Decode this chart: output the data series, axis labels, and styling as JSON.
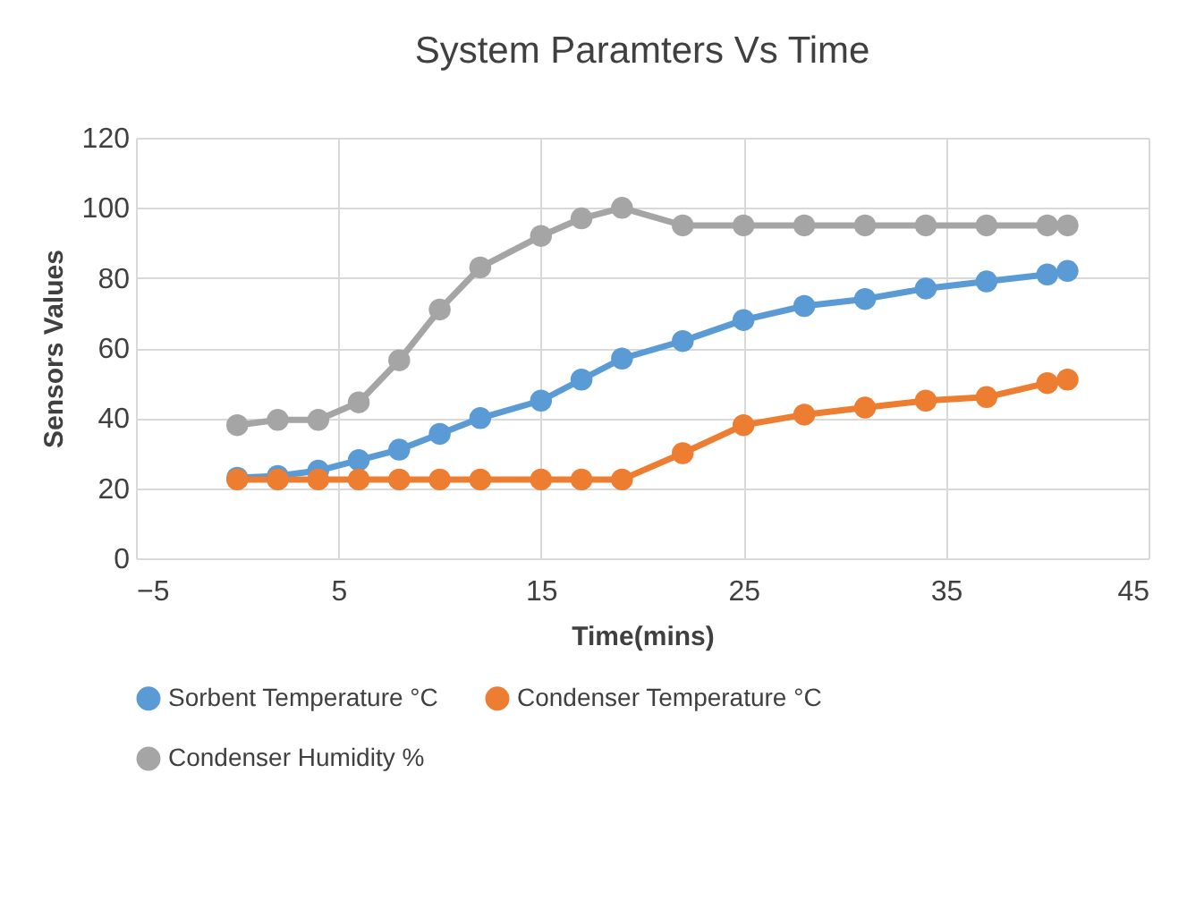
{
  "chart_data": {
    "type": "line",
    "title": "System Paramters Vs Time",
    "xlabel": "Time(mins)",
    "ylabel": "Sensors Values",
    "x": [
      0,
      2,
      4,
      6,
      8,
      10,
      12,
      15,
      17,
      19,
      22,
      25,
      28,
      31,
      34,
      37,
      40,
      41
    ],
    "series": [
      {
        "name": "Sorbent Temperature °C",
        "color": "#5b9bd5",
        "values": [
          23,
          23.5,
          25,
          28,
          31,
          35.5,
          40,
          45,
          51,
          57,
          62,
          68,
          72,
          74,
          77,
          79,
          81,
          82
        ]
      },
      {
        "name": "Condenser Temperature °C",
        "color": "#ed7d31",
        "values": [
          22.5,
          22.5,
          22.5,
          22.5,
          22.5,
          22.5,
          22.5,
          22.5,
          22.5,
          22.5,
          30,
          38,
          41,
          43,
          45,
          46,
          50,
          51
        ]
      },
      {
        "name": "Condenser Humidity  %",
        "color": "#a5a5a5",
        "values": [
          38,
          39.5,
          39.5,
          44.5,
          56.5,
          71,
          83,
          92,
          97,
          100,
          95,
          95,
          95,
          95,
          95,
          95,
          95,
          95
        ]
      }
    ],
    "xlim": [
      -5,
      45
    ],
    "xticks": [
      -5,
      5,
      15,
      25,
      35,
      45
    ],
    "ylim": [
      0,
      120
    ],
    "yticks": [
      0,
      20,
      40,
      60,
      80,
      100,
      120
    ],
    "grid": true,
    "legend": "bottom",
    "marker": "circle",
    "line_style": "solid"
  }
}
